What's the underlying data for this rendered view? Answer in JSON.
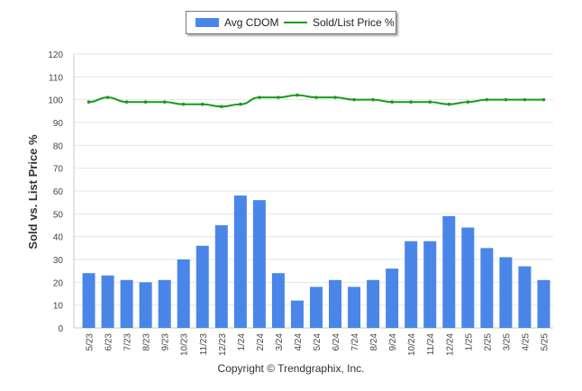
{
  "chart_data": {
    "type": "bar",
    "categories": [
      "5/23",
      "6/23",
      "7/23",
      "8/23",
      "9/23",
      "10/23",
      "11/23",
      "12/23",
      "1/24",
      "2/24",
      "3/24",
      "4/24",
      "5/24",
      "6/24",
      "7/24",
      "8/24",
      "9/24",
      "10/24",
      "11/24",
      "12/24",
      "1/25",
      "2/25",
      "3/25",
      "4/25",
      "5/25"
    ],
    "series": [
      {
        "name": "Avg CDOM",
        "kind": "bar",
        "values": [
          24,
          23,
          21,
          20,
          21,
          30,
          36,
          45,
          58,
          56,
          24,
          12,
          18,
          21,
          18,
          21,
          26,
          38,
          38,
          49,
          44,
          35,
          31,
          27,
          21
        ]
      },
      {
        "name": "Sold/List Price %",
        "kind": "line",
        "values": [
          99,
          101,
          99,
          99,
          99,
          98,
          98,
          97,
          98,
          101,
          101,
          102,
          101,
          101,
          100,
          100,
          99,
          99,
          99,
          98,
          99,
          100,
          100,
          100,
          100
        ]
      }
    ],
    "ylabel": "Sold vs. List Price %",
    "ylim": [
      0,
      120
    ],
    "yticks": [
      0,
      10,
      20,
      30,
      40,
      50,
      60,
      70,
      80,
      90,
      100,
      110,
      120
    ],
    "grid": true,
    "legend_position": "top-center",
    "colors": {
      "bar": "#4a86e8",
      "line": "#1a9a1a",
      "grid": "#e6e6e6",
      "axis": "#c8c8c8"
    }
  },
  "footer": {
    "copyright": "Copyright © Trendgraphix, Inc."
  }
}
